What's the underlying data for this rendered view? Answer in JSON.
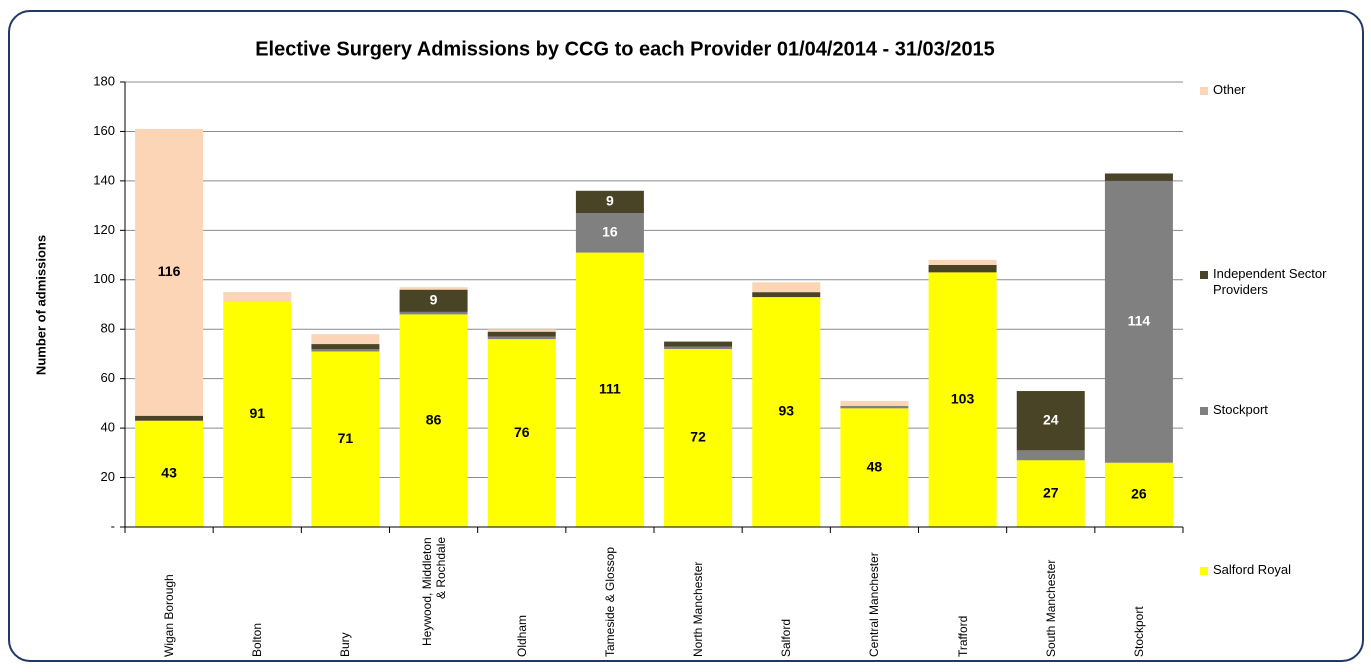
{
  "chart_data": {
    "type": "stacked_bar",
    "title": "Elective Surgery Admissions by CCG to each Provider 01/04/2014 - 31/03/2015",
    "y_label": "Number of admissions",
    "categories": [
      "Wigan Borough",
      "Bolton",
      "Bury",
      "Heywood, Middleton & Rochdale",
      "Oldham",
      "Tameside & Glossop",
      "North Manchester",
      "Salford",
      "Central Manchester",
      "Trafford",
      "South Manchester",
      "Stockport"
    ],
    "series": [
      {
        "name": "Salford Royal",
        "color": "#ffff00",
        "label_color": "#000000",
        "values": [
          43,
          91,
          71,
          86,
          76,
          111,
          72,
          93,
          48,
          103,
          27,
          26
        ],
        "value_labels": [
          "43",
          "91",
          "71",
          "86",
          "76",
          "111",
          "72",
          "93",
          "48",
          "103",
          "27",
          "26"
        ]
      },
      {
        "name": "Stockport",
        "color": "#808080",
        "label_color": "#ffffff",
        "values": [
          0,
          0,
          1,
          1,
          1,
          16,
          1,
          0,
          1,
          0,
          4,
          114
        ],
        "value_labels": [
          null,
          null,
          null,
          null,
          null,
          "16",
          null,
          null,
          null,
          null,
          null,
          "114"
        ]
      },
      {
        "name": "Independent Sector Providers",
        "color": "#4a4427",
        "label_color": "#ffffff",
        "values": [
          2,
          0,
          2,
          9,
          2,
          9,
          2,
          2,
          0,
          3,
          24,
          3
        ],
        "value_labels": [
          null,
          null,
          null,
          "9",
          null,
          "9",
          null,
          null,
          null,
          null,
          "24",
          null
        ]
      },
      {
        "name": "Other",
        "color": "#fbd5b5",
        "label_color": "#000000",
        "values": [
          116,
          4,
          4,
          1,
          1,
          0,
          0,
          4,
          2,
          2,
          0,
          0
        ],
        "value_labels": [
          "116",
          null,
          null,
          null,
          null,
          null,
          null,
          null,
          null,
          null,
          null,
          null
        ]
      }
    ],
    "ylim": [
      0,
      180
    ],
    "yticks": [
      {
        "value": 0,
        "label": "-"
      },
      20,
      40,
      60,
      80,
      100,
      120,
      140,
      160,
      180
    ],
    "grid": true,
    "legend": "right"
  }
}
